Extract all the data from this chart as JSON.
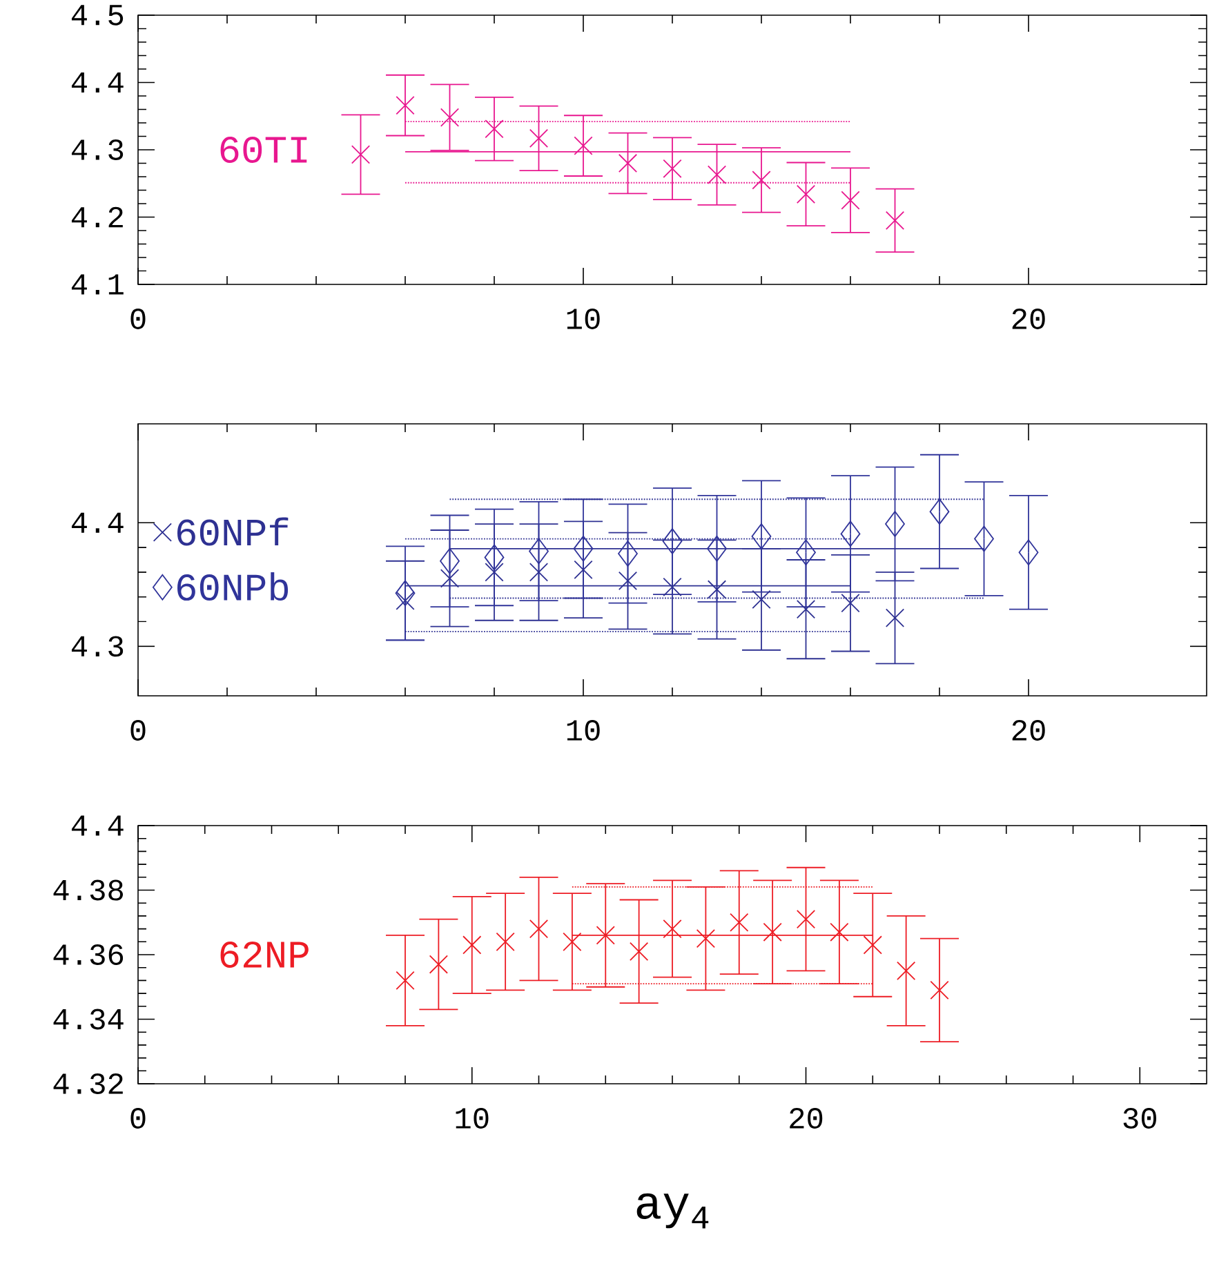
{
  "chart_data": [
    {
      "type": "scatter",
      "xlim": [
        0,
        24
      ],
      "xticks": [
        0,
        10,
        20
      ],
      "ylim": [
        4.1,
        4.5
      ],
      "yticks": [
        4.1,
        4.2,
        4.3,
        4.4,
        4.5
      ],
      "series": [
        {
          "name": "60TI",
          "color": "#e8178f",
          "marker": "cross",
          "x": [
            5,
            6,
            7,
            8,
            9,
            10,
            11,
            12,
            13,
            14,
            15,
            16,
            17
          ],
          "values": [
            4.293,
            4.366,
            4.348,
            4.331,
            4.317,
            4.306,
            4.28,
            4.272,
            4.263,
            4.255,
            4.234,
            4.225,
            4.195
          ],
          "errors": [
            0.059,
            0.045,
            0.049,
            0.047,
            0.048,
            0.045,
            0.045,
            0.046,
            0.045,
            0.048,
            0.047,
            0.048,
            0.047
          ]
        },
        {
          "type": "line",
          "color": "#e8178f",
          "line_style": "solid",
          "x": [
            6,
            16
          ],
          "values": [
            4.297,
            4.297
          ]
        },
        {
          "type": "line",
          "color": "#e8178f",
          "line_style": "dotted",
          "x": [
            6,
            16
          ],
          "values": [
            4.342,
            4.342
          ]
        },
        {
          "type": "line",
          "color": "#e8178f",
          "line_style": "dotted",
          "x": [
            6,
            16
          ],
          "values": [
            4.251,
            4.251
          ]
        }
      ]
    },
    {
      "type": "scatter",
      "xlim": [
        0,
        24
      ],
      "xticks": [
        0,
        10,
        20
      ],
      "ylim": [
        4.26,
        4.48
      ],
      "yticks": [
        4.3,
        4.4
      ],
      "legend": "left",
      "series": [
        {
          "name": "60NPf",
          "color": "#2e3192",
          "marker": "cross",
          "x": [
            6,
            7,
            8,
            9,
            10,
            11,
            12,
            13,
            14,
            15,
            16,
            17
          ],
          "values": [
            4.337,
            4.355,
            4.36,
            4.36,
            4.362,
            4.353,
            4.348,
            4.346,
            4.338,
            4.33,
            4.335,
            4.323
          ],
          "errors": [
            0.032,
            0.039,
            0.039,
            0.039,
            0.039,
            0.039,
            0.038,
            0.04,
            0.041,
            0.04,
            0.039,
            0.037
          ]
        },
        {
          "name": "60NPb",
          "color": "#30349a",
          "marker": "diamond",
          "x": [
            6,
            7,
            8,
            9,
            10,
            11,
            12,
            13,
            14,
            15,
            16,
            17,
            18,
            19,
            20
          ],
          "values": [
            4.343,
            4.369,
            4.372,
            4.377,
            4.379,
            4.375,
            4.385,
            4.379,
            4.389,
            4.376,
            4.391,
            4.399,
            4.409,
            4.387,
            4.376
          ],
          "errors": [
            0.038,
            0.037,
            0.039,
            0.04,
            0.04,
            0.04,
            0.043,
            0.043,
            0.045,
            0.044,
            0.047,
            0.046,
            0.046,
            0.046,
            0.046
          ]
        },
        {
          "type": "line",
          "color": "#2e3192",
          "line_style": "solid",
          "x": [
            6,
            16
          ],
          "values": [
            4.349,
            4.349
          ]
        },
        {
          "type": "line",
          "color": "#2e3192",
          "line_style": "dotted",
          "x": [
            6,
            16
          ],
          "values": [
            4.387,
            4.387
          ]
        },
        {
          "type": "line",
          "color": "#2e3192",
          "line_style": "dotted",
          "x": [
            6,
            16
          ],
          "values": [
            4.312,
            4.312
          ]
        },
        {
          "type": "line",
          "color": "#2e3192",
          "line_style": "solid",
          "x": [
            7,
            19
          ],
          "values": [
            4.379,
            4.379
          ]
        },
        {
          "type": "line",
          "color": "#2e3192",
          "line_style": "dotted",
          "x": [
            7,
            19
          ],
          "values": [
            4.419,
            4.419
          ]
        },
        {
          "type": "line",
          "color": "#2e3192",
          "line_style": "dotted",
          "x": [
            7,
            19
          ],
          "values": [
            4.339,
            4.339
          ]
        }
      ]
    },
    {
      "type": "scatter",
      "xlim": [
        0,
        32
      ],
      "xticks": [
        0,
        10,
        20,
        30
      ],
      "ylim": [
        4.32,
        4.4
      ],
      "yticks": [
        4.32,
        4.34,
        4.36,
        4.38,
        4.4
      ],
      "xlabel": "ay$_{4}$",
      "series": [
        {
          "name": "62NP",
          "color": "#ed1c24",
          "marker": "cross",
          "x": [
            8,
            9,
            10,
            11,
            12,
            13,
            14,
            15,
            16,
            17,
            18,
            19,
            20,
            21,
            22,
            23,
            24
          ],
          "values": [
            4.352,
            4.357,
            4.363,
            4.364,
            4.368,
            4.364,
            4.366,
            4.361,
            4.368,
            4.365,
            4.37,
            4.367,
            4.371,
            4.367,
            4.363,
            4.355,
            4.349
          ],
          "errors": [
            0.014,
            0.014,
            0.015,
            0.015,
            0.016,
            0.015,
            0.016,
            0.016,
            0.015,
            0.016,
            0.016,
            0.016,
            0.016,
            0.016,
            0.016,
            0.017,
            0.016
          ]
        },
        {
          "type": "line",
          "color": "#ed1c24",
          "line_style": "solid",
          "x": [
            13,
            22
          ],
          "values": [
            4.366,
            4.366
          ]
        },
        {
          "type": "line",
          "color": "#ed1c24",
          "line_style": "dotted",
          "x": [
            13,
            22
          ],
          "values": [
            4.381,
            4.381
          ]
        },
        {
          "type": "line",
          "color": "#ed1c24",
          "line_style": "dotted",
          "x": [
            13,
            22
          ],
          "values": [
            4.351,
            4.351
          ]
        }
      ]
    }
  ]
}
